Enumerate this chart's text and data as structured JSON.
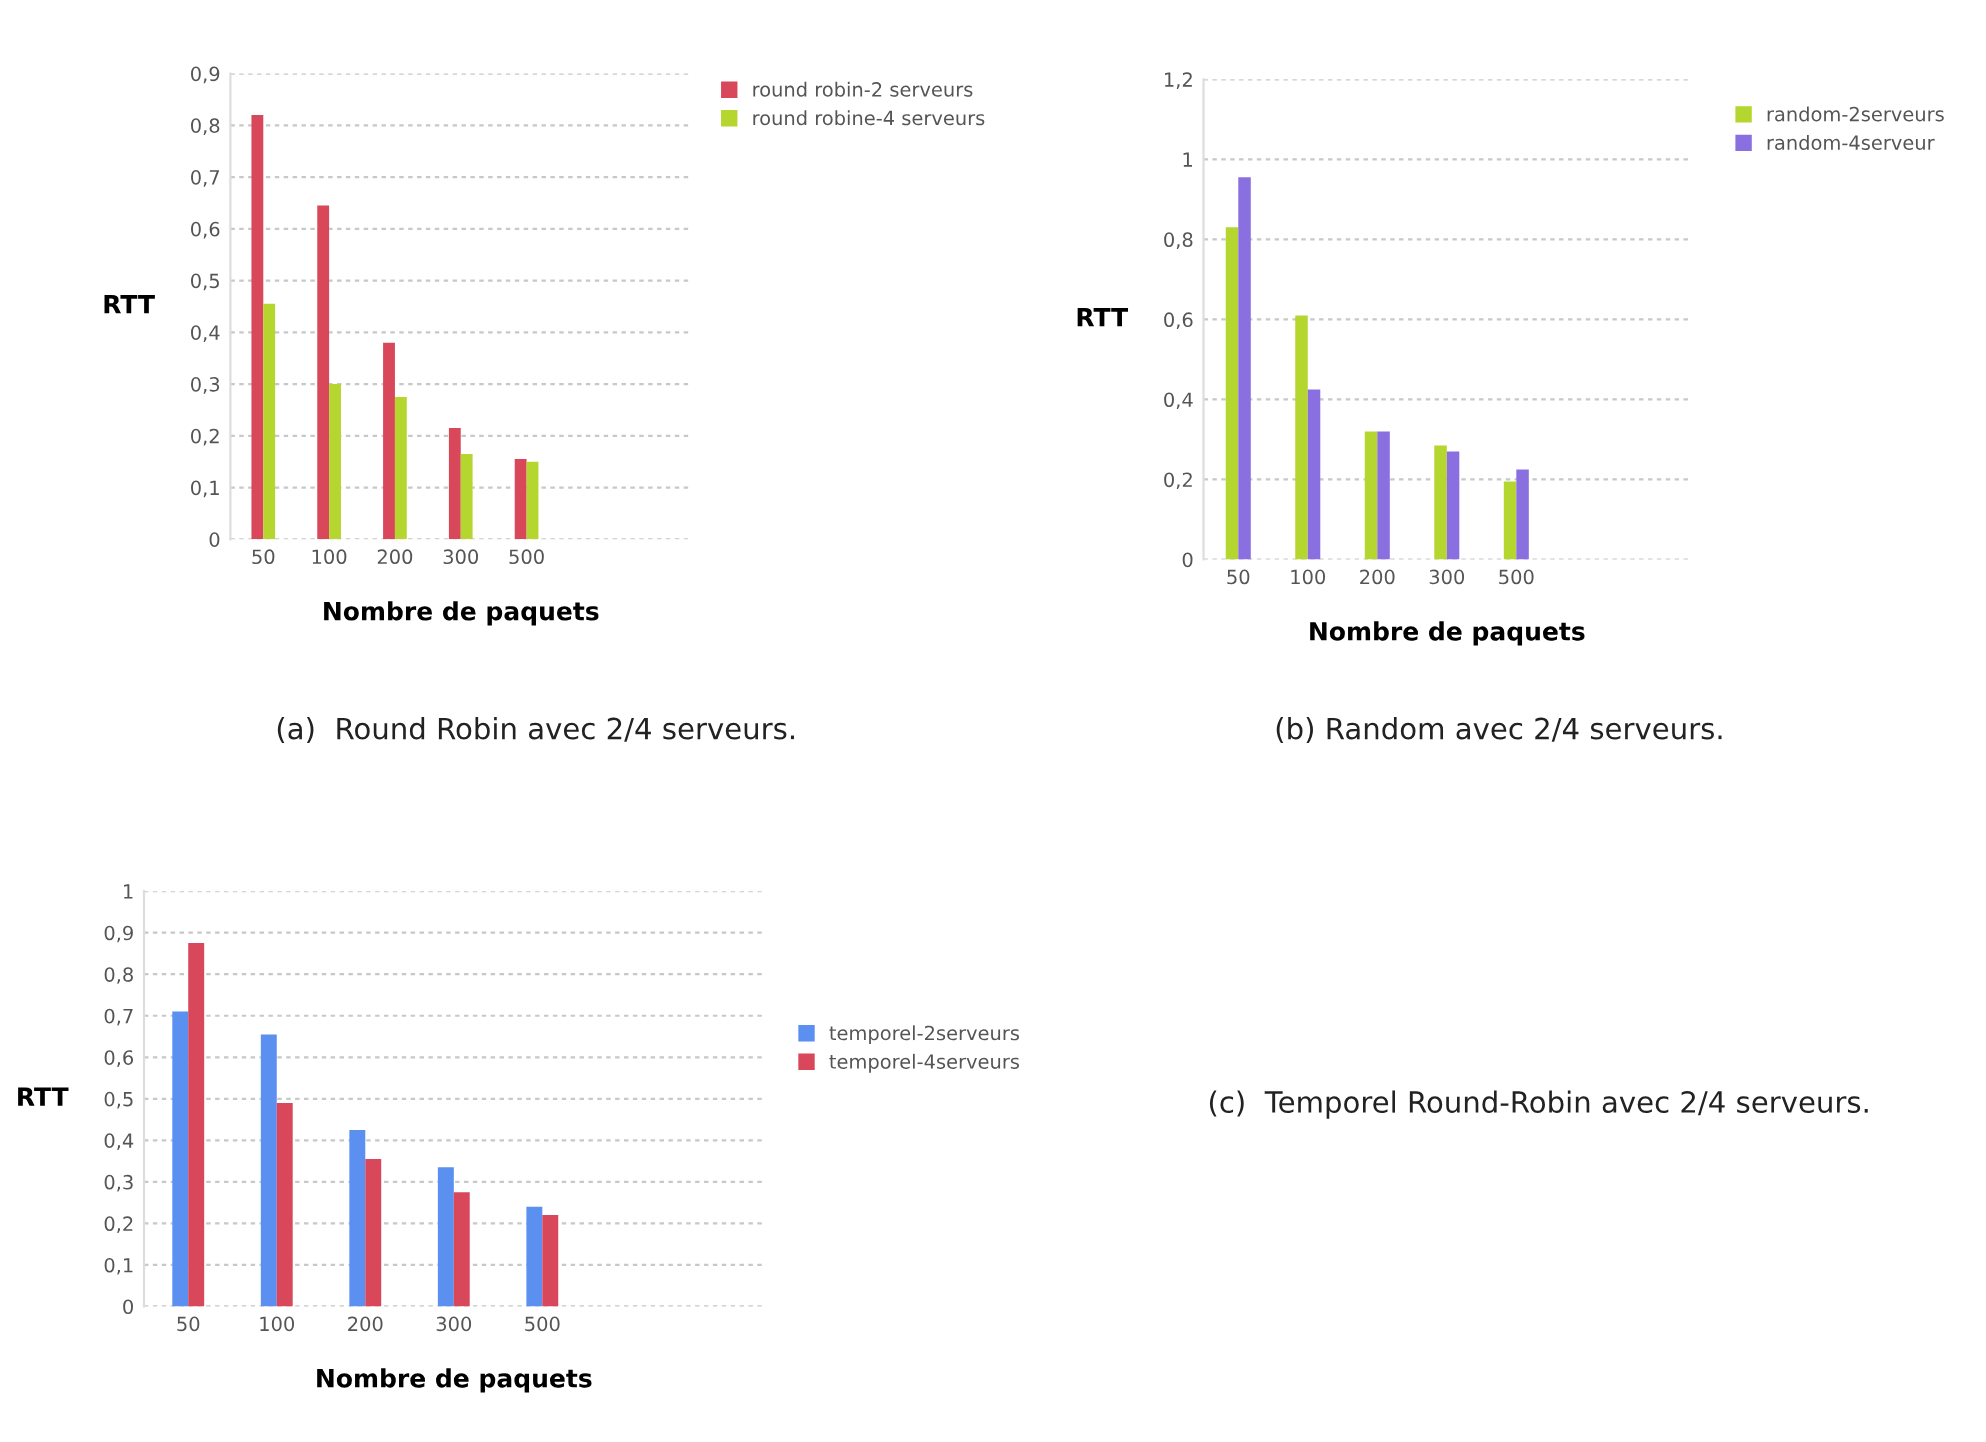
{
  "chart_data": [
    {
      "type": "bar",
      "categories": [
        "50",
        "100",
        "200",
        "300",
        "500"
      ],
      "xlabel": "Nombre de paquets",
      "ylabel": "RTT",
      "ylim": [
        0,
        0.9
      ],
      "yticks": [
        {
          "value": 0,
          "label": "0"
        },
        {
          "value": 0.1,
          "label": "0,1"
        },
        {
          "value": 0.2,
          "label": "0,2"
        },
        {
          "value": 0.3,
          "label": "0,3"
        },
        {
          "value": 0.4,
          "label": "0,4"
        },
        {
          "value": 0.5,
          "label": "0,5"
        },
        {
          "value": 0.6,
          "label": "0,6"
        },
        {
          "value": 0.7,
          "label": "0,7"
        },
        {
          "value": 0.8,
          "label": "0,8"
        },
        {
          "value": 0.9,
          "label": "0,9"
        }
      ],
      "grid": "y",
      "legend": "top right",
      "series": [
        {
          "name": "round robin-2 serveurs",
          "color": "#d9475b",
          "values": [
            0.82,
            0.645,
            0.38,
            0.215,
            0.155
          ]
        },
        {
          "name": "round robine-4 serveurs",
          "color": "#b5d62e",
          "values": [
            0.455,
            0.3,
            0.275,
            0.165,
            0.15
          ]
        }
      ],
      "annotations": [
        "(a)  Round Robin avec 2/4 serveurs."
      ]
    },
    {
      "type": "bar",
      "categories": [
        "50",
        "100",
        "200",
        "300",
        "500"
      ],
      "xlabel": "Nombre de paquets",
      "ylabel": "RTT",
      "ylim": [
        0,
        1.2
      ],
      "yticks": [
        {
          "value": 0,
          "label": "0"
        },
        {
          "value": 0.2,
          "label": "0,2"
        },
        {
          "value": 0.4,
          "label": "0,4"
        },
        {
          "value": 0.6,
          "label": "0,6"
        },
        {
          "value": 0.8,
          "label": "0,8"
        },
        {
          "value": 1,
          "label": "1"
        },
        {
          "value": 1.2,
          "label": "1,2"
        }
      ],
      "grid": "y",
      "legend": "top right",
      "series": [
        {
          "name": "random-2serveurs",
          "color": "#b5d62e",
          "values": [
            0.83,
            0.61,
            0.32,
            0.285,
            0.195
          ]
        },
        {
          "name": "random-4serveur",
          "color": "#8a6fe0",
          "values": [
            0.955,
            0.425,
            0.32,
            0.27,
            0.225
          ]
        }
      ],
      "annotations": [
        "(b) Random avec 2/4 serveurs."
      ]
    },
    {
      "type": "bar",
      "categories": [
        "50",
        "100",
        "200",
        "300",
        "500"
      ],
      "xlabel": "Nombre de paquets",
      "ylabel": "RTT",
      "ylim": [
        0,
        1
      ],
      "yticks": [
        {
          "value": 0,
          "label": "0"
        },
        {
          "value": 0.1,
          "label": "0,1"
        },
        {
          "value": 0.2,
          "label": "0,2"
        },
        {
          "value": 0.3,
          "label": "0,3"
        },
        {
          "value": 0.4,
          "label": "0,4"
        },
        {
          "value": 0.5,
          "label": "0,5"
        },
        {
          "value": 0.6,
          "label": "0,6"
        },
        {
          "value": 0.7,
          "label": "0,7"
        },
        {
          "value": 0.8,
          "label": "0,8"
        },
        {
          "value": 0.9,
          "label": "0,9"
        },
        {
          "value": 1,
          "label": "1"
        }
      ],
      "grid": "y",
      "legend": "right",
      "series": [
        {
          "name": "temporel-2serveurs",
          "color": "#5b8ff0",
          "values": [
            0.71,
            0.655,
            0.425,
            0.335,
            0.24
          ]
        },
        {
          "name": "temporel-4serveurs",
          "color": "#d9475b",
          "values": [
            0.875,
            0.49,
            0.355,
            0.275,
            0.22
          ]
        }
      ],
      "annotations": [
        "(c)  Temporel Round-Robin avec 2/4 serveurs."
      ]
    }
  ]
}
